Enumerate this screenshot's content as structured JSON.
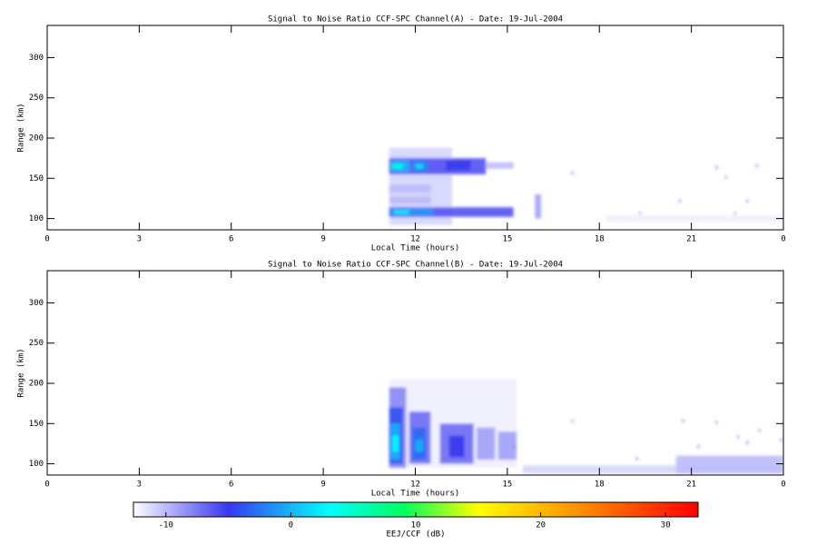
{
  "chart_data": [
    {
      "type": "heatmap",
      "title": "Signal to Noise Ratio CCF-SPC Channel(A) - Date: 19-Jul-2004",
      "x_label": "Local Time (hours)",
      "y_label": "Range (km)",
      "xlim": [
        0,
        24
      ],
      "xticks": [
        0,
        3,
        6,
        9,
        12,
        15,
        18,
        21,
        {
          "value": 24,
          "label": "0"
        }
      ],
      "ylim": [
        86,
        340
      ],
      "yticks": [
        100,
        150,
        200,
        250,
        300
      ],
      "cells": [
        [
          11.15,
          13.2,
          92,
          188,
          -11
        ],
        [
          11.15,
          14.3,
          155,
          175,
          -6
        ],
        [
          11.2,
          11.8,
          158,
          172,
          0
        ],
        [
          11.25,
          11.6,
          162,
          168,
          4
        ],
        [
          11.9,
          12.4,
          158,
          172,
          -2
        ],
        [
          12.0,
          12.25,
          162,
          168,
          2
        ],
        [
          13.0,
          13.8,
          160,
          172,
          -5
        ],
        [
          14.3,
          15.2,
          162,
          170,
          -10
        ],
        [
          11.15,
          15.2,
          102,
          114,
          -6
        ],
        [
          11.2,
          12.6,
          104,
          112,
          -1
        ],
        [
          11.3,
          11.8,
          106,
          110,
          3
        ],
        [
          11.15,
          12.5,
          118,
          128,
          -10
        ],
        [
          11.15,
          12.5,
          132,
          142,
          -10
        ],
        [
          15.9,
          16.1,
          100,
          130,
          -9
        ],
        [
          17.1,
          17.15,
          155,
          158,
          -5
        ],
        [
          21.8,
          21.85,
          162,
          165,
          -5
        ],
        [
          22.1,
          22.15,
          150,
          153,
          -3
        ],
        [
          23.1,
          23.15,
          164,
          167,
          -4
        ],
        [
          19.3,
          19.35,
          105,
          108,
          -3
        ],
        [
          20.6,
          20.65,
          120,
          123,
          -6
        ],
        [
          22.4,
          22.45,
          105,
          108,
          -3
        ],
        [
          22.8,
          22.85,
          120,
          123,
          -6
        ],
        [
          18.2,
          24,
          96,
          104,
          -12
        ]
      ]
    },
    {
      "type": "heatmap",
      "title": "Signal to Noise Ratio CCF-SPC Channel(B) - Date: 19-Jul-2004",
      "x_label": "Local Time (hours)",
      "y_label": "Range (km)",
      "xlim": [
        0,
        24
      ],
      "xticks": [
        0,
        3,
        6,
        9,
        12,
        15,
        18,
        21,
        {
          "value": 24,
          "label": "0"
        }
      ],
      "ylim": [
        86,
        340
      ],
      "yticks": [
        100,
        150,
        200,
        250,
        300
      ],
      "cells": [
        [
          11.15,
          15.3,
          95,
          205,
          -12
        ],
        [
          11.15,
          11.7,
          95,
          195,
          -8
        ],
        [
          11.15,
          11.6,
          100,
          170,
          -4
        ],
        [
          11.2,
          11.5,
          105,
          150,
          0
        ],
        [
          11.25,
          11.45,
          115,
          135,
          3
        ],
        [
          11.8,
          12.5,
          100,
          165,
          -7
        ],
        [
          11.9,
          12.35,
          105,
          145,
          -3
        ],
        [
          12.0,
          12.25,
          115,
          130,
          0
        ],
        [
          12.8,
          13.9,
          100,
          150,
          -7
        ],
        [
          13.1,
          13.6,
          108,
          135,
          -5
        ],
        [
          14.0,
          14.6,
          105,
          145,
          -9
        ],
        [
          14.7,
          15.3,
          105,
          140,
          -9
        ],
        [
          15.5,
          24,
          88,
          98,
          -11
        ],
        [
          20.5,
          24,
          88,
          110,
          -10
        ],
        [
          17.1,
          17.15,
          152,
          155,
          -3
        ],
        [
          20.7,
          20.75,
          152,
          155,
          -4
        ],
        [
          21.8,
          21.85,
          150,
          153,
          -3
        ],
        [
          22.5,
          22.55,
          132,
          135,
          -3
        ],
        [
          22.8,
          22.85,
          125,
          128,
          -5
        ],
        [
          23.2,
          23.25,
          140,
          143,
          -6
        ],
        [
          23.9,
          23.95,
          128,
          131,
          -4
        ],
        [
          15.2,
          15.25,
          120,
          123,
          -4
        ],
        [
          19.2,
          19.25,
          105,
          108,
          -4
        ],
        [
          21.2,
          21.25,
          120,
          123,
          -4
        ]
      ]
    }
  ],
  "colorbar": {
    "label": "EEJ/CCF (dB)",
    "clim": [
      -12.6,
      32.6
    ],
    "ticks": [
      -10,
      0,
      10,
      20,
      30
    ],
    "colorscale": [
      [
        -12.6,
        "#ffffff"
      ],
      [
        -5,
        "#3838f0"
      ],
      [
        3,
        "#00ffff"
      ],
      [
        9,
        "#00ff60"
      ],
      [
        15,
        "#ffff00"
      ],
      [
        23,
        "#ff9000"
      ],
      [
        32.6,
        "#ff0000"
      ]
    ]
  }
}
